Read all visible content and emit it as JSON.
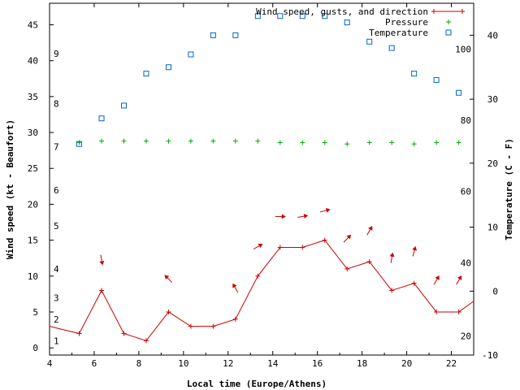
{
  "chart_data": {
    "type": "line",
    "title": "",
    "xlabel": "Local time (Europe/Athens)",
    "ylabel": "Wind speed (kt - Beaufort)",
    "y2label": "Temperature (C - F)",
    "xlim": [
      4,
      23
    ],
    "ylim": [
      -1,
      48
    ],
    "y2lim": [
      -10,
      45
    ],
    "x_ticks": [
      4,
      6,
      8,
      10,
      12,
      14,
      16,
      18,
      20,
      22
    ],
    "x_tick_labels": [
      "4",
      "6",
      "8",
      "10",
      "12",
      "14",
      "16",
      "18",
      "20",
      "22"
    ],
    "y_ticks": [
      0,
      5,
      10,
      15,
      20,
      25,
      30,
      35,
      40,
      45
    ],
    "y_tick_labels": [
      "0",
      "5",
      "10",
      "15",
      "20",
      "25",
      "30",
      "35",
      "40",
      "45"
    ],
    "beaufort_labels": [
      {
        "text": "1",
        "y": 1
      },
      {
        "text": "2",
        "y": 4
      },
      {
        "text": "3",
        "y": 7
      },
      {
        "text": "4",
        "y": 11
      },
      {
        "text": "5",
        "y": 17
      },
      {
        "text": "6",
        "y": 22
      },
      {
        "text": "7",
        "y": 28
      },
      {
        "text": "8",
        "y": 34
      },
      {
        "text": "9",
        "y": 41
      }
    ],
    "y2_ticks": [
      -10,
      0,
      10,
      20,
      30,
      40
    ],
    "y2_tick_labels": [
      "-10",
      "0",
      "10",
      "20",
      "30",
      "40"
    ],
    "fahrenheit_labels": [
      {
        "text": "20",
        "y2": -7
      },
      {
        "text": "40",
        "y2": 4.4
      },
      {
        "text": "60",
        "y2": 15.6
      },
      {
        "text": "80",
        "y2": 26.7
      },
      {
        "text": "100",
        "y2": 37.8
      }
    ],
    "legend": [
      {
        "label": "Wind speed, gusts, and direction",
        "color": "#cc0000",
        "marker": "plus-line"
      },
      {
        "label": "Pressure",
        "color": "#00aa00",
        "marker": "plus"
      },
      {
        "label": "Temperature",
        "color": "#0066cc",
        "marker": "square"
      }
    ],
    "series": [
      {
        "name": "Wind speed, gusts, and direction",
        "color": "#cc0000",
        "x": [
          4.0,
          5.33,
          6.33,
          7.33,
          8.33,
          9.33,
          10.33,
          11.33,
          12.33,
          13.33,
          14.33,
          15.33,
          16.33,
          17.33,
          18.33,
          19.33,
          20.33,
          21.33,
          22.33,
          23.0
        ],
        "values": [
          3,
          2,
          8,
          2,
          1,
          5,
          3,
          3,
          4,
          10,
          14,
          14,
          15,
          11,
          12,
          8,
          9,
          5,
          5,
          6.5
        ],
        "marker_x": [
          5.33,
          6.33,
          7.33,
          8.33,
          9.33,
          10.33,
          11.33,
          12.33,
          13.33,
          14.33,
          15.33,
          16.33,
          17.33,
          18.33,
          19.33,
          20.33,
          21.33,
          22.33
        ]
      },
      {
        "name": "Pressure",
        "color": "#00aa00",
        "x": [
          5.33,
          6.33,
          7.33,
          8.33,
          9.33,
          10.33,
          11.33,
          12.33,
          13.33,
          14.33,
          15.33,
          16.33,
          17.33,
          18.33,
          19.33,
          20.33,
          21.33,
          22.33
        ],
        "values": [
          28.6,
          28.8,
          28.8,
          28.8,
          28.8,
          28.8,
          28.8,
          28.8,
          28.8,
          28.6,
          28.6,
          28.6,
          28.4,
          28.6,
          28.6,
          28.4,
          28.6,
          28.6
        ]
      },
      {
        "name": "Temperature",
        "color": "#0066cc",
        "axis": "y2",
        "x": [
          5.33,
          6.33,
          7.33,
          8.33,
          9.33,
          10.33,
          11.33,
          12.33,
          13.33,
          14.33,
          15.33,
          16.33,
          17.33,
          18.33,
          19.33,
          20.33,
          21.33,
          22.33
        ],
        "values": [
          23,
          27,
          29,
          34,
          35,
          37,
          40,
          40,
          43,
          43,
          43,
          43,
          42,
          39,
          38,
          34,
          33,
          31
        ]
      }
    ],
    "wind_direction_arrows": [
      {
        "x": 6.33,
        "y": 12.3,
        "to_deg": 170
      },
      {
        "x": 9.33,
        "y": 9.6,
        "to_deg": 315
      },
      {
        "x": 12.33,
        "y": 8.3,
        "to_deg": 330
      },
      {
        "x": 13.33,
        "y": 14.1,
        "to_deg": 60
      },
      {
        "x": 14.33,
        "y": 18.3,
        "to_deg": 90
      },
      {
        "x": 15.33,
        "y": 18.3,
        "to_deg": 80
      },
      {
        "x": 16.33,
        "y": 19.1,
        "to_deg": 75
      },
      {
        "x": 17.33,
        "y": 15.2,
        "to_deg": 45
      },
      {
        "x": 18.33,
        "y": 16.3,
        "to_deg": 30
      },
      {
        "x": 19.33,
        "y": 12.5,
        "to_deg": 10
      },
      {
        "x": 20.33,
        "y": 13.4,
        "to_deg": 15
      },
      {
        "x": 21.33,
        "y": 9.4,
        "to_deg": 30
      },
      {
        "x": 22.33,
        "y": 9.4,
        "to_deg": 30
      }
    ]
  }
}
